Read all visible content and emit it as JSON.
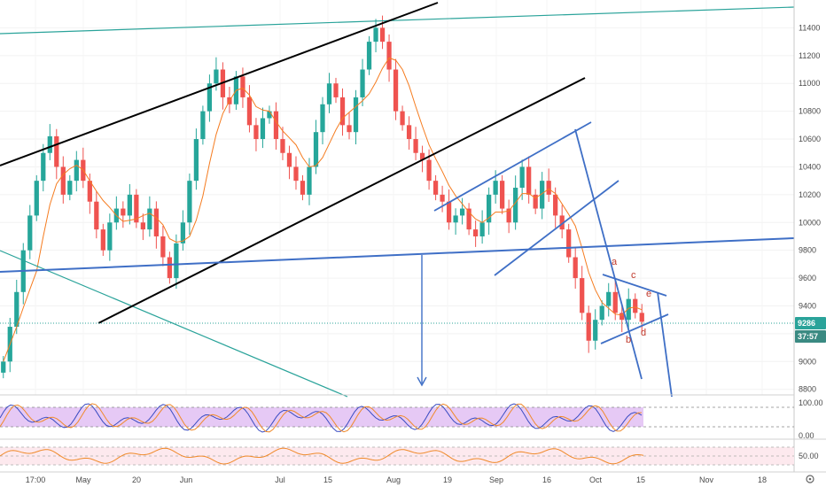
{
  "chart_data": {
    "type": "candlestick",
    "price_axis": {
      "ticks": [
        "11400",
        "11200",
        "11000",
        "10800",
        "10600",
        "10400",
        "10200",
        "10000",
        "9800",
        "9600",
        "9400",
        "9200",
        "9000",
        "8800"
      ],
      "range": [
        8760,
        11600
      ]
    },
    "date_axis": {
      "labels": [
        "17:00",
        "May",
        "20",
        "Jun",
        "Jul",
        "15",
        "Aug",
        "19",
        "Sep",
        "16",
        "Oct",
        "15",
        "Nov",
        "18"
      ]
    },
    "last_price": "9286",
    "countdown": "37:57",
    "wave_labels": [
      "a",
      "b",
      "c",
      "d",
      "e"
    ],
    "close_series": [
      9000,
      9250,
      9500,
      9800,
      10050,
      10300,
      10500,
      10620,
      10400,
      10200,
      10300,
      10450,
      10300,
      10150,
      9950,
      9800,
      10000,
      10100,
      10050,
      10200,
      10000,
      9950,
      10100,
      9900,
      9750,
      9600,
      9850,
      10000,
      10300,
      10600,
      10800,
      11000,
      11100,
      10900,
      10850,
      11050,
      10900,
      10700,
      10600,
      10750,
      10800,
      10600,
      10500,
      10400,
      10300,
      10200,
      10400,
      10650,
      10850,
      11000,
      10900,
      10700,
      10650,
      10900,
      11100,
      11300,
      11400,
      11300,
      11100,
      10800,
      10700,
      10600,
      10500,
      10450,
      10300,
      10200,
      10150,
      10000,
      10050,
      10100,
      9950,
      9900,
      10000,
      10200,
      10300,
      10100,
      10000,
      10250,
      10400,
      10200,
      10100,
      10300,
      10200,
      10050,
      9950,
      9750,
      9600,
      9350,
      9150,
      9300,
      9400,
      9500,
      9350,
      9300,
      9450,
      9350,
      9286
    ],
    "oscillator_1": {
      "levels": [
        "100.00",
        "0.00"
      ]
    },
    "oscillator_2": {
      "levels": [
        "50.00"
      ]
    },
    "colors": {
      "up": "#26a69a",
      "down": "#ef5350",
      "ma": "#f57c20",
      "trend_black": "#000000",
      "trend_blue": "#3f6fc6",
      "trend_teal": "#2aa39a",
      "stoch_k": "#3a4cc2",
      "stoch_d": "#f08a2a",
      "stoch_band": "#e6c9f5",
      "rsi": "#f08a2a",
      "rsi_band": "#fde9ee",
      "price_badge": "#2aa39a",
      "countdown_badge": "#3a8a82"
    }
  }
}
